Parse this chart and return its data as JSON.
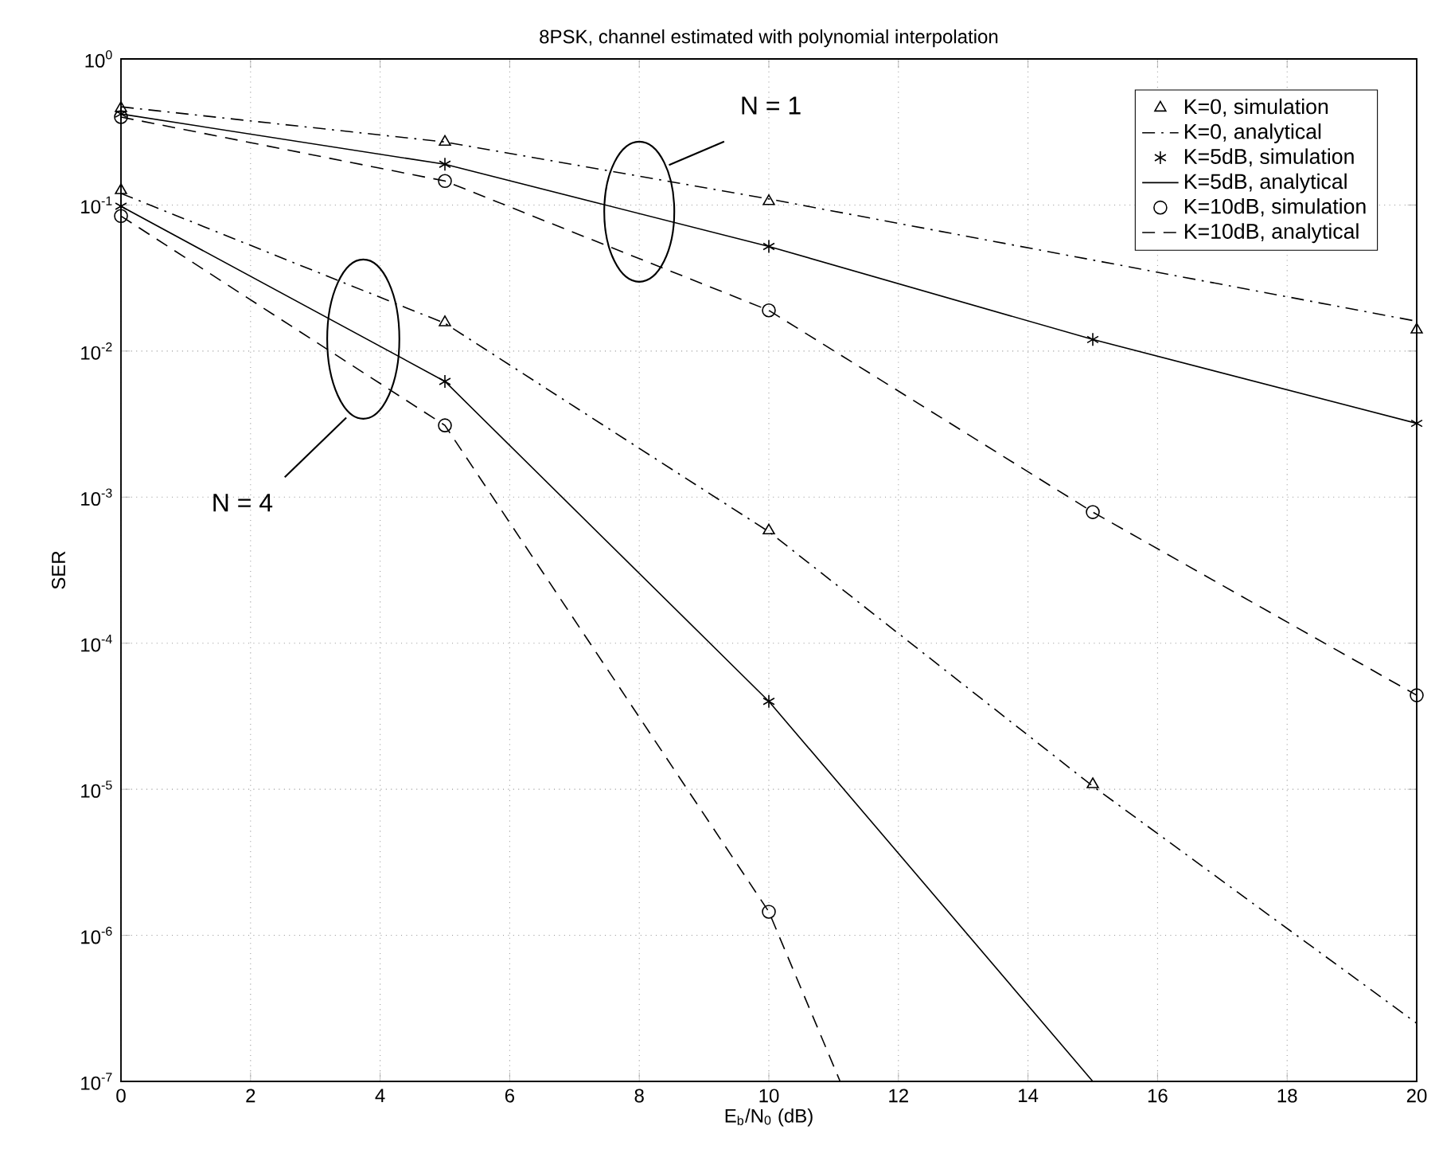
{
  "chart_data": {
    "type": "line",
    "title": "8PSK, channel estimated with polynomial interpolation",
    "xlabel": "E$_{b}$/N$_{0}$ (dB)",
    "ylabel": "SER",
    "log": "y",
    "grid": true,
    "legend": "top right",
    "xlim": [
      0,
      20
    ],
    "xticks": [
      0,
      2,
      4,
      6,
      8,
      10,
      12,
      14,
      16,
      18,
      20
    ],
    "ylim": [
      1e-07,
      1
    ],
    "yticks": [
      {
        "value": 1e-07,
        "label": "10$^{-7}$"
      },
      {
        "value": 1e-06,
        "label": "10$^{-6}$"
      },
      {
        "value": 1e-05,
        "label": "10$^{-5}$"
      },
      {
        "value": 0.0001,
        "label": "10$^{-4}$"
      },
      {
        "value": 0.001,
        "label": "10$^{-3}$"
      },
      {
        "value": 0.01,
        "label": "10$^{-2}$"
      },
      {
        "value": 0.1,
        "label": "10$^{-1}$"
      },
      {
        "value": 1,
        "label": "10$^{0}$"
      }
    ],
    "series": [
      {
        "name": "K=0, simulation",
        "type": "scatter",
        "marker": "triangle",
        "color": "#000000",
        "x": [
          0,
          5,
          10,
          20
        ],
        "values": [
          0.46,
          0.27,
          0.106,
          0.014
        ]
      },
      {
        "name": "K=0, analytical",
        "line_style": "dashdot",
        "color": "#000000",
        "x": [
          0,
          5,
          10,
          15,
          20
        ],
        "values": [
          0.47,
          0.27,
          0.11,
          0.042,
          0.016
        ]
      },
      {
        "name": "K=5dB, simulation",
        "type": "scatter",
        "marker": "cross",
        "color": "#000000",
        "x": [
          0,
          5,
          10,
          15,
          20
        ],
        "values": [
          0.42,
          0.19,
          0.052,
          0.012,
          0.0032
        ]
      },
      {
        "name": "K=5dB, analytical",
        "line_style": "solid",
        "color": "#000000",
        "x": [
          0,
          5,
          10,
          15,
          20
        ],
        "values": [
          0.42,
          0.19,
          0.052,
          0.012,
          0.0032
        ]
      },
      {
        "name": "K=10dB, simulation",
        "type": "scatter",
        "marker": "circle",
        "color": "#000000",
        "x": [
          0,
          5,
          10,
          15,
          20
        ],
        "values": [
          0.4,
          0.146,
          0.019,
          0.00079,
          4.4e-05
        ]
      },
      {
        "name": "K=10dB, analytical",
        "line_style": "dashed",
        "color": "#000000",
        "x": [
          0,
          5,
          10,
          15,
          20
        ],
        "values": [
          0.4,
          0.146,
          0.019,
          0.00079,
          4.4e-05
        ]
      },
      {
        "type": "scatter",
        "marker": "triangle",
        "color": "#000000",
        "x": [
          0,
          5,
          10,
          15
        ],
        "values": [
          0.126,
          0.0157,
          0.00059,
          1.08e-05
        ]
      },
      {
        "line_style": "dashdot",
        "color": "#000000",
        "x": [
          0,
          5,
          10,
          15,
          20
        ],
        "values": [
          0.12,
          0.0155,
          0.00058,
          1.05e-05,
          2.5e-07
        ]
      },
      {
        "type": "scatter",
        "marker": "cross",
        "color": "#000000",
        "x": [
          0,
          5,
          10
        ],
        "values": [
          0.098,
          0.0062,
          4e-05
        ]
      },
      {
        "line_style": "solid",
        "color": "#000000",
        "x": [
          0,
          5,
          10,
          15
        ],
        "values": [
          0.098,
          0.0062,
          4e-05,
          1e-07
        ]
      },
      {
        "type": "scatter",
        "marker": "circle",
        "color": "#000000",
        "x": [
          0,
          5,
          10
        ],
        "values": [
          0.084,
          0.0031,
          1.45e-06
        ]
      },
      {
        "line_style": "dashed",
        "color": "#000000",
        "x": [
          0,
          5,
          10,
          11.1
        ],
        "values": [
          0.084,
          0.0031,
          1.45e-06,
          1e-07
        ]
      }
    ],
    "annotations": [
      "N = 1",
      "N = 4"
    ]
  }
}
